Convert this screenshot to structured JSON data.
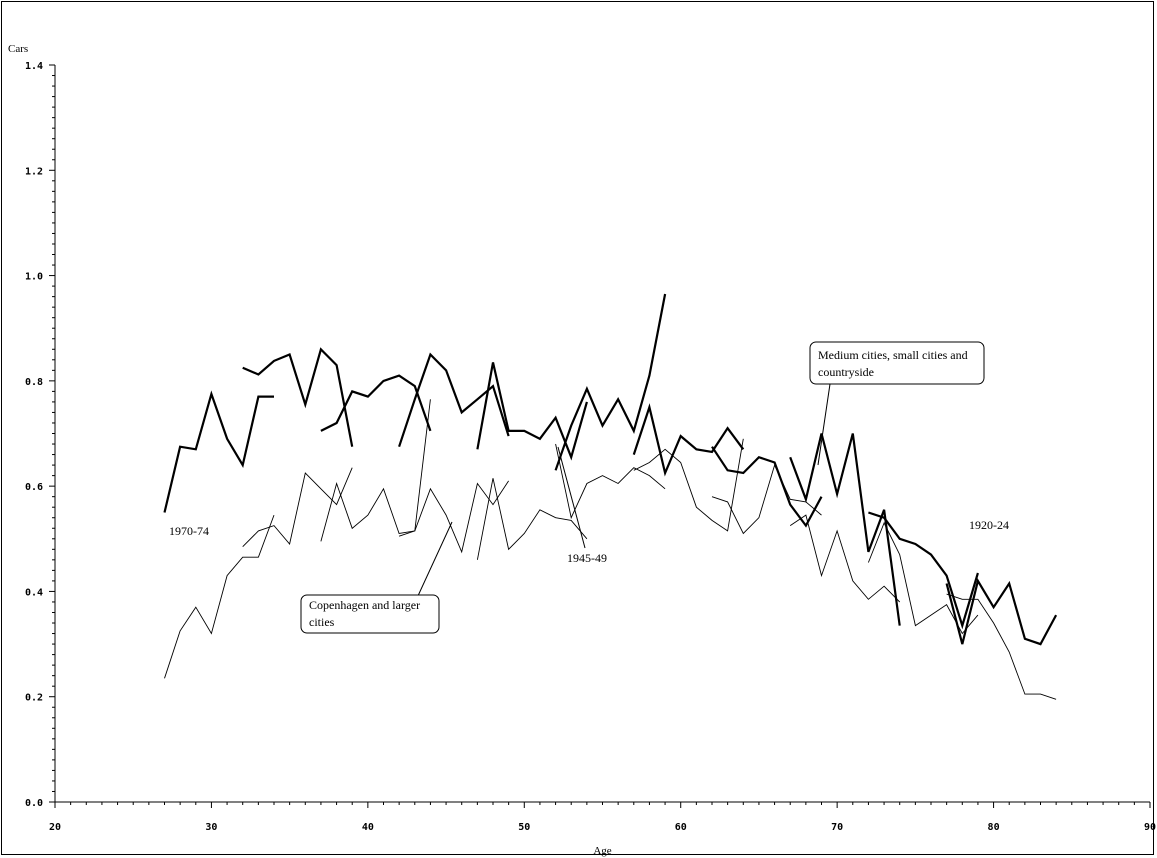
{
  "chart_data": {
    "type": "line",
    "xlabel": "Age",
    "ylabel": "Cars",
    "xlim": [
      20,
      90
    ],
    "ylim": [
      0.0,
      1.4
    ],
    "x_ticks": [
      "20",
      "30",
      "40",
      "50",
      "60",
      "70",
      "80",
      "90"
    ],
    "y_ticks": [
      "0.0",
      "0.2",
      "0.4",
      "0.6",
      "0.8",
      "1.0",
      "1.2",
      "1.4"
    ],
    "grid": false,
    "legend": "none",
    "annotations": {
      "medium": "Medium cities, small cities and countryside",
      "copenhagen": "Copenhagen and larger cities",
      "cohort_1970": "1970-74",
      "cohort_1945": "1945-49",
      "cohort_1920": "1920-24"
    },
    "series": [
      {
        "group": "medium",
        "x": [
          27,
          28,
          29,
          30,
          31,
          32,
          33,
          34
        ],
        "y": [
          0.55,
          0.675,
          0.67,
          0.775,
          0.69,
          0.64,
          0.77,
          0.77
        ]
      },
      {
        "group": "medium",
        "x": [
          32,
          33,
          34,
          35,
          36,
          37,
          38,
          39
        ],
        "y": [
          0.825,
          0.812,
          0.838,
          0.85,
          0.755,
          0.86,
          0.83,
          0.675
        ]
      },
      {
        "group": "medium",
        "x": [
          37,
          38,
          39,
          40,
          41,
          42,
          43,
          44
        ],
        "y": [
          0.705,
          0.72,
          0.78,
          0.77,
          0.8,
          0.81,
          0.79,
          0.705
        ]
      },
      {
        "group": "medium",
        "x": [
          42,
          43,
          44,
          45,
          46,
          47,
          48,
          49
        ],
        "y": [
          0.675,
          0.765,
          0.85,
          0.82,
          0.74,
          0.765,
          0.79,
          0.695
        ]
      },
      {
        "group": "medium",
        "x": [
          47,
          48,
          49,
          50,
          51,
          52,
          53,
          54
        ],
        "y": [
          0.67,
          0.835,
          0.705,
          0.705,
          0.69,
          0.73,
          0.655,
          0.76
        ]
      },
      {
        "group": "medium",
        "x": [
          52,
          53,
          54,
          55,
          56,
          57,
          58,
          59
        ],
        "y": [
          0.63,
          0.715,
          0.785,
          0.715,
          0.765,
          0.705,
          0.81,
          0.965
        ]
      },
      {
        "group": "medium",
        "x": [
          57,
          58,
          59,
          60,
          61,
          62,
          63,
          64
        ],
        "y": [
          0.66,
          0.75,
          0.625,
          0.695,
          0.67,
          0.665,
          0.71,
          0.67
        ]
      },
      {
        "group": "medium",
        "x": [
          62,
          63,
          64,
          65,
          66,
          67,
          68,
          69
        ],
        "y": [
          0.675,
          0.63,
          0.625,
          0.655,
          0.645,
          0.565,
          0.525,
          0.58
        ]
      },
      {
        "group": "medium",
        "x": [
          67,
          68,
          69,
          70,
          71,
          72,
          73,
          74
        ],
        "y": [
          0.655,
          0.575,
          0.7,
          0.585,
          0.7,
          0.475,
          0.555,
          0.335
        ]
      },
      {
        "group": "medium",
        "x": [
          72,
          73,
          74,
          75,
          76,
          77,
          78,
          79
        ],
        "y": [
          0.55,
          0.54,
          0.5,
          0.49,
          0.47,
          0.43,
          0.335,
          0.435
        ]
      },
      {
        "group": "medium",
        "x": [
          77,
          78,
          79,
          80,
          81,
          82,
          83,
          84
        ],
        "y": [
          0.415,
          0.3,
          0.42,
          0.37,
          0.415,
          0.31,
          0.3,
          0.355
        ]
      },
      {
        "group": "copenhagen",
        "x": [
          27,
          28,
          29,
          30,
          31,
          32,
          33,
          34
        ],
        "y": [
          0.235,
          0.325,
          0.37,
          0.32,
          0.43,
          0.465,
          0.465,
          0.545
        ]
      },
      {
        "group": "copenhagen",
        "x": [
          32,
          33,
          34,
          35,
          36,
          37,
          38,
          39
        ],
        "y": [
          0.485,
          0.515,
          0.525,
          0.49,
          0.625,
          0.595,
          0.565,
          0.635
        ]
      },
      {
        "group": "copenhagen",
        "x": [
          37,
          38,
          39,
          40,
          41,
          42,
          43,
          44
        ],
        "y": [
          0.495,
          0.605,
          0.52,
          0.545,
          0.595,
          0.51,
          0.515,
          0.765
        ]
      },
      {
        "group": "copenhagen",
        "x": [
          42,
          43,
          44,
          45,
          46,
          47,
          48,
          49
        ],
        "y": [
          0.505,
          0.515,
          0.595,
          0.545,
          0.475,
          0.605,
          0.565,
          0.61
        ]
      },
      {
        "group": "copenhagen",
        "x": [
          47,
          48,
          49,
          50,
          51,
          52,
          53,
          54
        ],
        "y": [
          0.46,
          0.615,
          0.48,
          0.51,
          0.555,
          0.54,
          0.535,
          0.5
        ]
      },
      {
        "group": "copenhagen",
        "x": [
          52,
          53,
          54,
          55,
          56,
          57,
          58,
          59
        ],
        "y": [
          0.68,
          0.54,
          0.605,
          0.62,
          0.605,
          0.635,
          0.62,
          0.595
        ]
      },
      {
        "group": "copenhagen",
        "x": [
          57,
          58,
          59,
          60,
          61,
          62,
          63,
          64
        ],
        "y": [
          0.63,
          0.645,
          0.67,
          0.645,
          0.56,
          0.535,
          0.515,
          0.69
        ]
      },
      {
        "group": "copenhagen",
        "x": [
          62,
          63,
          64,
          65,
          66,
          67,
          68,
          69
        ],
        "y": [
          0.58,
          0.57,
          0.51,
          0.54,
          0.64,
          0.575,
          0.57,
          0.545
        ]
      },
      {
        "group": "copenhagen",
        "x": [
          67,
          68,
          69,
          70,
          71,
          72,
          73,
          74
        ],
        "y": [
          0.525,
          0.545,
          0.43,
          0.515,
          0.42,
          0.385,
          0.41,
          0.38
        ]
      },
      {
        "group": "copenhagen",
        "x": [
          72,
          73,
          74,
          75,
          76,
          77,
          78,
          79
        ],
        "y": [
          0.455,
          0.53,
          0.47,
          0.335,
          0.355,
          0.375,
          0.32,
          0.355
        ]
      },
      {
        "group": "copenhagen",
        "x": [
          77,
          78,
          79,
          80,
          81,
          82,
          83,
          84
        ],
        "y": [
          0.395,
          0.385,
          0.385,
          0.34,
          0.285,
          0.205,
          0.205,
          0.195
        ]
      }
    ]
  }
}
